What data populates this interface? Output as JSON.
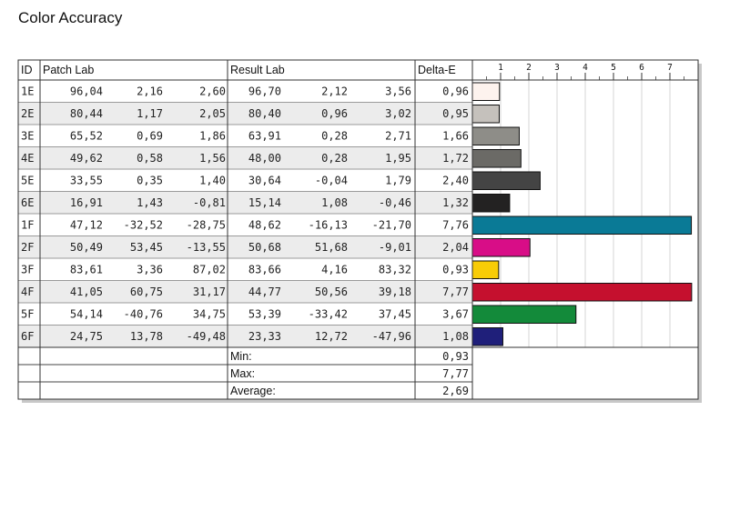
{
  "title": "Color Accuracy",
  "chart_data": {
    "type": "table",
    "headers": {
      "id": "ID",
      "patch": "Patch Lab",
      "result": "Result Lab",
      "delta": "Delta-E"
    },
    "axis_ticks": [
      "1",
      "2",
      "3",
      "4",
      "5",
      "6",
      "7"
    ],
    "xlim": [
      0,
      8
    ],
    "rows": [
      {
        "id": "1E",
        "patch": [
          "96,04",
          "2,16",
          "2,60"
        ],
        "result": [
          "96,70",
          "2,12",
          "3,56"
        ],
        "delta": "0,96",
        "value": 0.96,
        "color": "#fdf3ee"
      },
      {
        "id": "2E",
        "patch": [
          "80,44",
          "1,17",
          "2,05"
        ],
        "result": [
          "80,40",
          "0,96",
          "3,02"
        ],
        "delta": "0,95",
        "value": 0.95,
        "color": "#c5c1bc"
      },
      {
        "id": "3E",
        "patch": [
          "65,52",
          "0,69",
          "1,86"
        ],
        "result": [
          "63,91",
          "0,28",
          "2,71"
        ],
        "delta": "1,66",
        "value": 1.66,
        "color": "#8e8d88"
      },
      {
        "id": "4E",
        "patch": [
          "49,62",
          "0,58",
          "1,56"
        ],
        "result": [
          "48,00",
          "0,28",
          "1,95"
        ],
        "delta": "1,72",
        "value": 1.72,
        "color": "#6b6a66"
      },
      {
        "id": "5E",
        "patch": [
          "33,55",
          "0,35",
          "1,40"
        ],
        "result": [
          "30,64",
          "-0,04",
          "1,79"
        ],
        "delta": "2,40",
        "value": 2.4,
        "color": "#444444"
      },
      {
        "id": "6E",
        "patch": [
          "16,91",
          "1,43",
          "-0,81"
        ],
        "result": [
          "15,14",
          "1,08",
          "-0,46"
        ],
        "delta": "1,32",
        "value": 1.32,
        "color": "#232222"
      },
      {
        "id": "1F",
        "patch": [
          "47,12",
          "-32,52",
          "-28,75"
        ],
        "result": [
          "48,62",
          "-16,13",
          "-21,70"
        ],
        "delta": "7,76",
        "value": 7.76,
        "color": "#0a7a96"
      },
      {
        "id": "2F",
        "patch": [
          "50,49",
          "53,45",
          "-13,55"
        ],
        "result": [
          "50,68",
          "51,68",
          "-9,01"
        ],
        "delta": "2,04",
        "value": 2.04,
        "color": "#d80d87"
      },
      {
        "id": "3F",
        "patch": [
          "83,61",
          "3,36",
          "87,02"
        ],
        "result": [
          "83,66",
          "4,16",
          "83,32"
        ],
        "delta": "0,93",
        "value": 0.93,
        "color": "#f8cc06"
      },
      {
        "id": "4F",
        "patch": [
          "41,05",
          "60,75",
          "31,17"
        ],
        "result": [
          "44,77",
          "50,56",
          "39,18"
        ],
        "delta": "7,77",
        "value": 7.77,
        "color": "#c5102e"
      },
      {
        "id": "5F",
        "patch": [
          "54,14",
          "-40,76",
          "34,75"
        ],
        "result": [
          "53,39",
          "-33,42",
          "37,45"
        ],
        "delta": "3,67",
        "value": 3.67,
        "color": "#138a3a"
      },
      {
        "id": "6F",
        "patch": [
          "24,75",
          "13,78",
          "-49,48"
        ],
        "result": [
          "23,33",
          "12,72",
          "-47,96"
        ],
        "delta": "1,08",
        "value": 1.08,
        "color": "#1f1f7a"
      }
    ],
    "summary": [
      {
        "label": "Min:",
        "value": "0,93"
      },
      {
        "label": "Max:",
        "value": "7,77"
      },
      {
        "label": "Average:",
        "value": "2,69"
      }
    ]
  }
}
